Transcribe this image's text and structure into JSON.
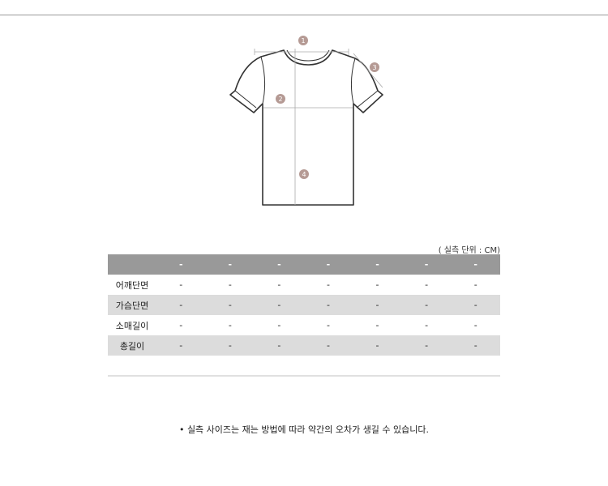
{
  "diagram": {
    "markers": [
      "1",
      "2",
      "3",
      "4"
    ],
    "marker_color": "#b59a94"
  },
  "unit_label": "( 실측 단위 : CM)",
  "table": {
    "header": [
      "",
      "-",
      "-",
      "-",
      "-",
      "-",
      "-",
      "-"
    ],
    "rows": [
      {
        "label": "어깨단면",
        "values": [
          "-",
          "-",
          "-",
          "-",
          "-",
          "-",
          "-"
        ]
      },
      {
        "label": "가슴단면",
        "values": [
          "-",
          "-",
          "-",
          "-",
          "-",
          "-",
          "-"
        ]
      },
      {
        "label": "소매길이",
        "values": [
          "-",
          "-",
          "-",
          "-",
          "-",
          "-",
          "-"
        ]
      },
      {
        "label": "총길이",
        "values": [
          "-",
          "-",
          "-",
          "-",
          "-",
          "-",
          "-"
        ]
      }
    ]
  },
  "note": "• 실측 사이즈는 재는 방법에 따라 약간의 오차가 생길 수 있습니다."
}
